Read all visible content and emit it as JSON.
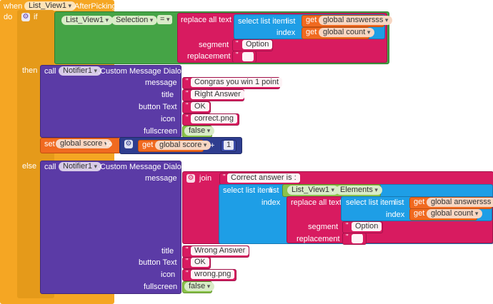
{
  "event": {
    "when": "when",
    "component": "List_View1",
    "event_name": ".AfterPicking",
    "do": "do"
  },
  "if_block": {
    "label": "if",
    "then": "then",
    "else": "else"
  },
  "condition": {
    "component": "List_View1",
    "property": "Selection",
    "operator": "=",
    "replace_all_text": "replace all text",
    "select_list_item": "select list item",
    "list_label": "list",
    "index_label": "index",
    "get": "get",
    "var_answers": "global answersss",
    "var_count": "global count",
    "segment_label": "segment",
    "segment_value": "Option",
    "replacement_label": "replacement",
    "replacement_value": " "
  },
  "then_call": {
    "call": "call",
    "component": "Notifier1",
    "method": ".Custom Message Dialog",
    "message_label": "message",
    "message_value": "Congras you win 1 point",
    "title_label": "title",
    "title_value": "Right Answer",
    "button_label": "button Text",
    "button_value": "OK",
    "icon_label": "icon",
    "icon_value": "correct.png",
    "fullscreen_label": "fullscreen",
    "fullscreen_value": "false"
  },
  "set_block": {
    "set": "set",
    "var": "global score",
    "to": "to",
    "get": "get",
    "get_var": "global score",
    "op": "+",
    "num": "1"
  },
  "else_call": {
    "call": "call",
    "component": "Notifier1",
    "method": ".Custom Message Dialog",
    "message_label": "message",
    "join": "join",
    "join_text": "Correct answer is :",
    "select_list_item": "select list item",
    "list_label": "list",
    "component2": "List_View1",
    "property2": "Elements",
    "index_label": "index",
    "replace_all_text": "replace all text",
    "get": "get",
    "var_answers": "global answersss",
    "var_count": "global count",
    "segment_label": "segment",
    "segment_value": "Option",
    "replacement_label": "replacement",
    "replacement_value": " ",
    "title_label": "title",
    "title_value": "Wrong Answer",
    "button_label": "button Text",
    "button_value": "OK",
    "icon_label": "icon",
    "icon_value": "wrong.png",
    "fullscreen_label": "fullscreen",
    "fullscreen_value": "false"
  }
}
